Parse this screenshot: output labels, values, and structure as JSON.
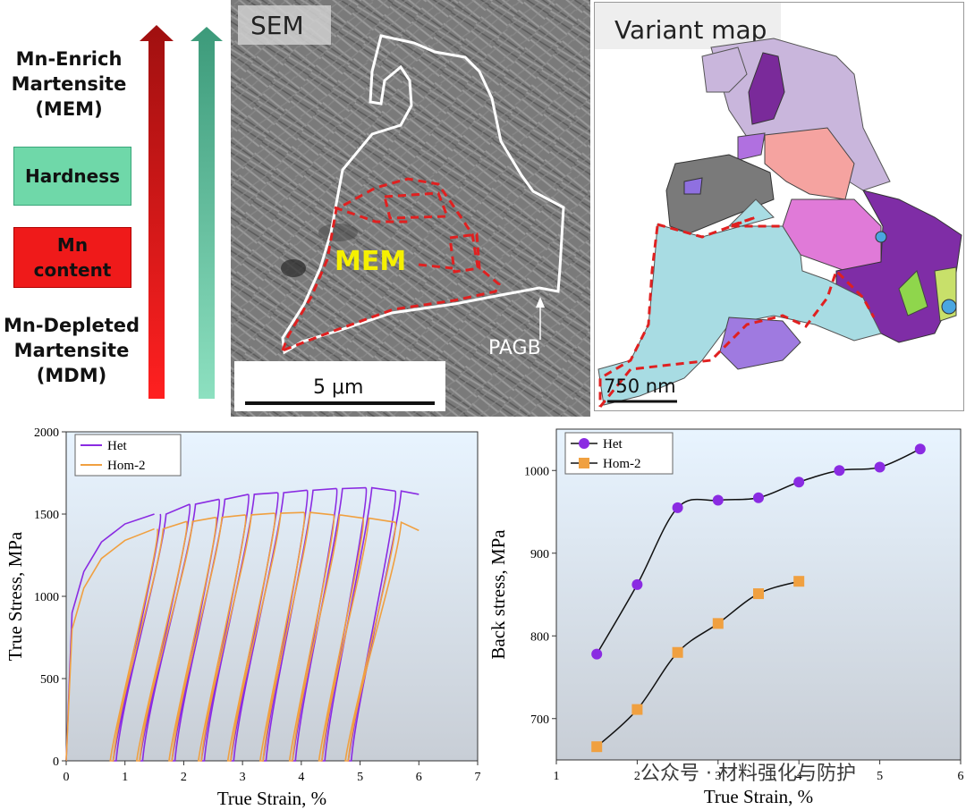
{
  "left_panel": {
    "top_label": "Mn-Enrich\nMartensite\n(MEM)",
    "hardness_label": "Hardness",
    "mn_label": "Mn\ncontent",
    "bottom_label": "Mn-Depleted\nMartensite\n(MDM)",
    "colors": {
      "red_arrow": "#e01010",
      "green_arrow": "#7fd6b4"
    }
  },
  "sem_panel": {
    "title": "SEM",
    "region_label": "MEM",
    "boundary_label": "PAGB",
    "scale_label": "5 μm"
  },
  "variant_panel": {
    "title": "Variant map",
    "scale_label": "750 nm"
  },
  "watermark": "公众号 · 材料强化与防护",
  "chart_data": [
    {
      "type": "line",
      "xlabel": "True Strain, %",
      "ylabel": "True Stress, MPa",
      "xlim": [
        0,
        7
      ],
      "ylim": [
        0,
        2000
      ],
      "xticks": [
        "0",
        "1",
        "2",
        "3",
        "4",
        "5",
        "6",
        "7"
      ],
      "yticks": [
        "0",
        "500",
        "1000",
        "1500",
        "2000"
      ],
      "legend": "top-left",
      "series": [
        {
          "name": "Het",
          "color": "#8a2be2",
          "envelope": [
            [
              0.1,
              900
            ],
            [
              0.3,
              1150
            ],
            [
              0.6,
              1330
            ],
            [
              1.0,
              1440
            ],
            [
              1.5,
              1500
            ],
            [
              2.0,
              1550
            ],
            [
              2.5,
              1590
            ],
            [
              3.0,
              1620
            ],
            [
              3.5,
              1630
            ],
            [
              4.0,
              1640
            ],
            [
              4.5,
              1650
            ],
            [
              5.0,
              1655
            ],
            [
              5.5,
              1660
            ],
            [
              6.0,
              1620
            ]
          ],
          "unload_points": [
            [
              1.6,
              1500
            ],
            [
              2.1,
              1560
            ],
            [
              2.6,
              1590
            ],
            [
              3.1,
              1620
            ],
            [
              3.6,
              1630
            ],
            [
              4.1,
              1645
            ],
            [
              4.6,
              1655
            ],
            [
              5.1,
              1660
            ],
            [
              5.6,
              1640
            ]
          ],
          "unload_strain": [
            0.8,
            1.25,
            1.8,
            2.3,
            2.8,
            3.35,
            3.85,
            4.35,
            4.8
          ]
        },
        {
          "name": "Hom-2",
          "color": "#f0a040",
          "envelope": [
            [
              0.1,
              800
            ],
            [
              0.3,
              1050
            ],
            [
              0.6,
              1230
            ],
            [
              1.0,
              1340
            ],
            [
              1.5,
              1410
            ],
            [
              2.0,
              1450
            ],
            [
              2.5,
              1480
            ],
            [
              3.0,
              1495
            ],
            [
              3.5,
              1505
            ],
            [
              4.0,
              1510
            ],
            [
              4.5,
              1500
            ],
            [
              5.0,
              1480
            ],
            [
              5.5,
              1460
            ],
            [
              6.0,
              1400
            ]
          ],
          "unload_points": [
            [
              1.55,
              1410
            ],
            [
              2.05,
              1455
            ],
            [
              2.55,
              1480
            ],
            [
              3.05,
              1495
            ],
            [
              3.55,
              1505
            ],
            [
              4.05,
              1510
            ],
            [
              4.55,
              1495
            ],
            [
              5.05,
              1475
            ],
            [
              5.6,
              1450
            ]
          ],
          "unload_strain": [
            0.75,
            1.2,
            1.75,
            2.25,
            2.75,
            3.3,
            3.8,
            4.3,
            4.75
          ]
        }
      ]
    },
    {
      "type": "line",
      "xlabel": "True Strain, %",
      "ylabel": "Back stress, MPa",
      "xlim": [
        1,
        6
      ],
      "ylim": [
        650,
        1050
      ],
      "xticks": [
        "1",
        "2",
        "3",
        "4",
        "5",
        "6"
      ],
      "yticks": [
        "700",
        "800",
        "900",
        "1000"
      ],
      "legend": "top-left",
      "series": [
        {
          "name": "Het",
          "color": "#8a2be2",
          "marker": "circle",
          "x": [
            1.5,
            2.0,
            2.5,
            3.0,
            3.5,
            4.0,
            4.5,
            5.0,
            5.5
          ],
          "y": [
            778,
            862,
            955,
            964,
            967,
            986,
            1000,
            1004,
            1026
          ]
        },
        {
          "name": "Hom-2",
          "color": "#f0a040",
          "marker": "square",
          "x": [
            1.5,
            2.0,
            2.5,
            3.0,
            3.5,
            4.0
          ],
          "y": [
            666,
            711,
            780,
            815,
            851,
            866
          ]
        }
      ]
    }
  ]
}
